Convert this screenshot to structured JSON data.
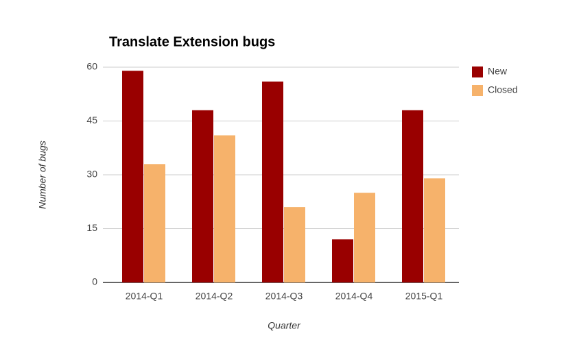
{
  "chart_data": {
    "type": "bar",
    "title": "Translate Extension bugs",
    "x_label": "Quarter",
    "y_label": "Number of bugs",
    "categories": [
      "2014-Q1",
      "2014-Q2",
      "2014-Q3",
      "2014-Q4",
      "2015-Q1"
    ],
    "series": [
      {
        "name": "New",
        "color": "#990000",
        "values": [
          59,
          48,
          56,
          12,
          48
        ]
      },
      {
        "name": "Closed",
        "color": "#f6b26b",
        "values": [
          33,
          41,
          21,
          25,
          29
        ]
      }
    ],
    "ylim": [
      0,
      60
    ],
    "yticks": [
      0,
      15,
      30,
      45,
      60
    ],
    "grid": true,
    "legend": "right"
  }
}
